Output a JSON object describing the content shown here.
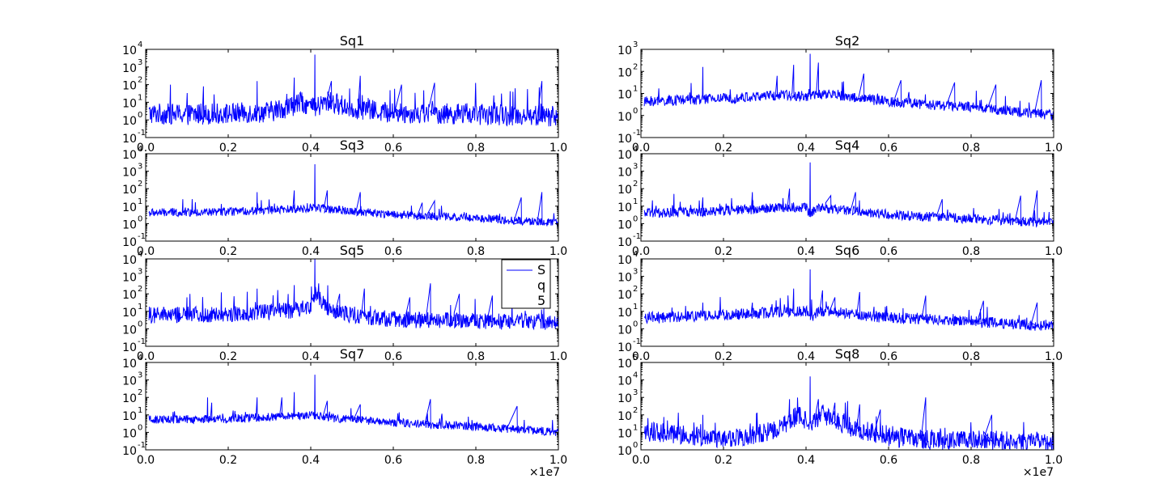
{
  "figure": {
    "background": "#ffffff",
    "line_color": "#0000ff",
    "x_offset_label": "×1e7"
  },
  "chart_data": [
    {
      "type": "line",
      "title": "Sq1",
      "xlabel": "",
      "ylabel": "",
      "xlim": [
        0.0,
        1.0
      ],
      "ylim_log10": [
        -1,
        4
      ],
      "yscale": "log",
      "grid": false,
      "x_ticks": [
        "0.0",
        "0.2",
        "0.4",
        "0.6",
        "0.8",
        "1.0"
      ],
      "y_ticks": [
        {
          "base": "10",
          "exp": "-1"
        },
        {
          "base": "10",
          "exp": "0"
        },
        {
          "base": "10",
          "exp": "1"
        },
        {
          "base": "10",
          "exp": "2"
        },
        {
          "base": "10",
          "exp": "3"
        },
        {
          "base": "10",
          "exp": "4"
        }
      ],
      "series": [
        {
          "x": [
            0.01,
            0.1,
            0.2,
            0.3,
            0.35,
            0.38,
            0.41,
            0.44,
            0.5,
            0.6,
            0.7,
            0.8,
            0.9,
            1.0
          ],
          "baseline_log10": [
            0.3,
            0.25,
            0.3,
            0.4,
            0.7,
            0.95,
            0.55,
            1.0,
            0.6,
            0.35,
            0.3,
            0.25,
            0.2,
            0.15
          ],
          "noise_log10": 0.75,
          "peaks": [
            [
              0.41,
              3.7
            ],
            [
              0.36,
              2.4
            ],
            [
              0.27,
              2.2
            ],
            [
              0.52,
              2.5
            ],
            [
              0.06,
              2.0
            ],
            [
              0.7,
              2.1
            ],
            [
              0.96,
              2.2
            ],
            [
              0.45,
              2.2
            ],
            [
              0.62,
              2.0
            ],
            [
              0.14,
              1.9
            ]
          ]
        }
      ]
    },
    {
      "type": "line",
      "title": "Sq2",
      "xlabel": "",
      "ylabel": "",
      "xlim": [
        0.0,
        1.0
      ],
      "ylim_log10": [
        -1,
        3
      ],
      "yscale": "log",
      "grid": false,
      "x_ticks": [
        "0.0",
        "0.2",
        "0.4",
        "0.6",
        "0.8",
        "1.0"
      ],
      "y_ticks": [
        {
          "base": "10",
          "exp": "-1"
        },
        {
          "base": "10",
          "exp": "0"
        },
        {
          "base": "10",
          "exp": "1"
        },
        {
          "base": "10",
          "exp": "2"
        },
        {
          "base": "10",
          "exp": "3"
        }
      ],
      "series": [
        {
          "x": [
            0.01,
            0.2,
            0.35,
            0.41,
            0.45,
            0.6,
            0.8,
            1.0
          ],
          "baseline_log10": [
            0.6,
            0.75,
            0.9,
            0.85,
            0.95,
            0.6,
            0.35,
            0.0
          ],
          "noise_log10": 0.3,
          "peaks": [
            [
              0.41,
              2.8
            ],
            [
              0.15,
              2.2
            ],
            [
              0.43,
              2.4
            ],
            [
              0.37,
              2.3
            ],
            [
              0.33,
              1.8
            ],
            [
              0.54,
              1.9
            ],
            [
              0.63,
              1.6
            ],
            [
              0.97,
              1.6
            ],
            [
              0.76,
              1.5
            ],
            [
              0.86,
              1.4
            ]
          ]
        }
      ]
    },
    {
      "type": "line",
      "title": "Sq3",
      "xlabel": "",
      "ylabel": "",
      "xlim": [
        0.0,
        1.0
      ],
      "ylim_log10": [
        -1,
        4
      ],
      "yscale": "log",
      "grid": false,
      "x_ticks": [
        "0.0",
        "0.2",
        "0.4",
        "0.6",
        "0.8",
        "1.0"
      ],
      "y_ticks": [
        {
          "base": "10",
          "exp": "-1"
        },
        {
          "base": "10",
          "exp": "0"
        },
        {
          "base": "10",
          "exp": "1"
        },
        {
          "base": "10",
          "exp": "2"
        },
        {
          "base": "10",
          "exp": "3"
        },
        {
          "base": "10",
          "exp": "4"
        }
      ],
      "series": [
        {
          "x": [
            0.01,
            0.2,
            0.35,
            0.41,
            0.45,
            0.6,
            0.8,
            1.0
          ],
          "baseline_log10": [
            0.6,
            0.65,
            0.8,
            0.9,
            0.8,
            0.5,
            0.3,
            0.0
          ],
          "noise_log10": 0.3,
          "peaks": [
            [
              0.41,
              3.4
            ],
            [
              0.27,
              1.8
            ],
            [
              0.36,
              1.9
            ],
            [
              0.44,
              1.9
            ],
            [
              0.52,
              1.8
            ],
            [
              0.96,
              1.8
            ],
            [
              0.09,
              1.4
            ],
            [
              0.67,
              1.2
            ],
            [
              0.7,
              1.3
            ],
            [
              0.91,
              1.5
            ]
          ]
        }
      ]
    },
    {
      "type": "line",
      "title": "Sq4",
      "xlabel": "",
      "ylabel": "",
      "xlim": [
        0.0,
        1.0
      ],
      "ylim_log10": [
        -1,
        4
      ],
      "yscale": "log",
      "grid": false,
      "x_ticks": [
        "0.0",
        "0.2",
        "0.4",
        "0.6",
        "0.8",
        "1.0"
      ],
      "y_ticks": [
        {
          "base": "10",
          "exp": "-1"
        },
        {
          "base": "10",
          "exp": "0"
        },
        {
          "base": "10",
          "exp": "1"
        },
        {
          "base": "10",
          "exp": "2"
        },
        {
          "base": "10",
          "exp": "3"
        },
        {
          "base": "10",
          "exp": "4"
        }
      ],
      "series": [
        {
          "x": [
            0.01,
            0.2,
            0.35,
            0.4,
            0.41,
            0.43,
            0.6,
            0.8,
            1.0
          ],
          "baseline_log10": [
            0.55,
            0.7,
            0.9,
            0.9,
            0.55,
            0.9,
            0.5,
            0.25,
            0.0
          ],
          "noise_log10": 0.35,
          "peaks": [
            [
              0.41,
              3.5
            ],
            [
              0.08,
              1.7
            ],
            [
              0.27,
              1.8
            ],
            [
              0.36,
              2.0
            ],
            [
              0.52,
              1.8
            ],
            [
              0.96,
              1.9
            ],
            [
              0.92,
              1.6
            ],
            [
              0.73,
              1.4
            ],
            [
              0.15,
              1.5
            ],
            [
              0.46,
              1.6
            ]
          ]
        }
      ]
    },
    {
      "type": "line",
      "title": "Sq5",
      "xlabel": "",
      "ylabel": "",
      "xlim": [
        0.0,
        1.0
      ],
      "ylim_log10": [
        -1,
        4
      ],
      "yscale": "log",
      "grid": false,
      "x_ticks": [
        "0.0",
        "0.2",
        "0.4",
        "0.6",
        "0.8",
        "1.0"
      ],
      "y_ticks": [
        {
          "base": "10",
          "exp": "-1"
        },
        {
          "base": "10",
          "exp": "0"
        },
        {
          "base": "10",
          "exp": "1"
        },
        {
          "base": "10",
          "exp": "2"
        },
        {
          "base": "10",
          "exp": "3"
        },
        {
          "base": "10",
          "exp": "4"
        }
      ],
      "legend": {
        "placement": "top-right",
        "entries": [
          "S",
          "q",
          "5"
        ]
      },
      "series": [
        {
          "x": [
            0.01,
            0.2,
            0.35,
            0.4,
            0.41,
            0.45,
            0.6,
            0.8,
            1.0
          ],
          "baseline_log10": [
            0.7,
            0.8,
            1.0,
            1.3,
            1.9,
            0.9,
            0.5,
            0.4,
            0.35
          ],
          "noise_log10": 0.6,
          "peaks": [
            [
              0.41,
              4.0
            ],
            [
              0.36,
              2.5
            ],
            [
              0.27,
              2.3
            ],
            [
              0.53,
              2.3
            ],
            [
              0.69,
              2.6
            ],
            [
              0.76,
              2.0
            ],
            [
              0.84,
              1.9
            ],
            [
              0.64,
              1.8
            ],
            [
              0.1,
              1.8
            ],
            [
              0.47,
              2.0
            ]
          ]
        }
      ]
    },
    {
      "type": "line",
      "title": "Sq6",
      "xlabel": "",
      "ylabel": "",
      "xlim": [
        0.0,
        1.0
      ],
      "ylim_log10": [
        -1,
        4
      ],
      "yscale": "log",
      "grid": false,
      "x_ticks": [
        "0.0",
        "0.2",
        "0.4",
        "0.6",
        "0.8",
        "1.0"
      ],
      "y_ticks": [
        {
          "base": "10",
          "exp": "-1"
        },
        {
          "base": "10",
          "exp": "0"
        },
        {
          "base": "10",
          "exp": "1"
        },
        {
          "base": "10",
          "exp": "2"
        },
        {
          "base": "10",
          "exp": "3"
        },
        {
          "base": "10",
          "exp": "4"
        }
      ],
      "series": [
        {
          "x": [
            0.01,
            0.2,
            0.35,
            0.4,
            0.41,
            0.43,
            0.6,
            0.8,
            1.0
          ],
          "baseline_log10": [
            0.6,
            0.75,
            0.95,
            1.0,
            0.6,
            1.0,
            0.6,
            0.4,
            0.1
          ],
          "noise_log10": 0.4,
          "peaks": [
            [
              0.41,
              3.4
            ],
            [
              0.37,
              2.3
            ],
            [
              0.44,
              2.2
            ],
            [
              0.53,
              2.1
            ],
            [
              0.69,
              1.9
            ],
            [
              0.15,
              1.5
            ],
            [
              0.27,
              1.5
            ],
            [
              0.83,
              1.6
            ],
            [
              0.96,
              1.5
            ],
            [
              0.47,
              1.8
            ]
          ]
        }
      ]
    },
    {
      "type": "line",
      "title": "Sq7",
      "xlabel": "",
      "ylabel": "",
      "xlim": [
        0.0,
        1.0
      ],
      "ylim_log10": [
        -1,
        4
      ],
      "yscale": "log",
      "grid": false,
      "x_ticks": [
        "0.0",
        "0.2",
        "0.4",
        "0.6",
        "0.8",
        "1.0"
      ],
      "y_ticks": [
        {
          "base": "10",
          "exp": "-1"
        },
        {
          "base": "10",
          "exp": "0"
        },
        {
          "base": "10",
          "exp": "1"
        },
        {
          "base": "10",
          "exp": "2"
        },
        {
          "base": "10",
          "exp": "3"
        },
        {
          "base": "10",
          "exp": "4"
        }
      ],
      "series": [
        {
          "x": [
            0.01,
            0.2,
            0.35,
            0.41,
            0.45,
            0.6,
            0.8,
            1.0
          ],
          "baseline_log10": [
            0.7,
            0.75,
            0.9,
            0.95,
            0.8,
            0.55,
            0.3,
            0.0
          ],
          "noise_log10": 0.3,
          "peaks": [
            [
              0.41,
              3.3
            ],
            [
              0.36,
              2.3
            ],
            [
              0.15,
              2.0
            ],
            [
              0.27,
              2.0
            ],
            [
              0.33,
              2.0
            ],
            [
              0.44,
              1.8
            ],
            [
              0.69,
              1.9
            ],
            [
              0.16,
              1.7
            ],
            [
              0.52,
              1.6
            ],
            [
              0.9,
              1.5
            ]
          ]
        }
      ]
    },
    {
      "type": "line",
      "title": "Sq8",
      "xlabel": "",
      "ylabel": "",
      "xlim": [
        0.0,
        1.0
      ],
      "ylim_log10": [
        0,
        5
      ],
      "yscale": "log",
      "grid": false,
      "x_ticks": [
        "0.0",
        "0.2",
        "0.4",
        "0.6",
        "0.8",
        "1.0"
      ],
      "y_ticks": [
        {
          "base": "10",
          "exp": "0"
        },
        {
          "base": "10",
          "exp": "1"
        },
        {
          "base": "10",
          "exp": "2"
        },
        {
          "base": "10",
          "exp": "3"
        },
        {
          "base": "10",
          "exp": "4"
        },
        {
          "base": "10",
          "exp": "5"
        }
      ],
      "series": [
        {
          "x": [
            0.01,
            0.1,
            0.2,
            0.3,
            0.35,
            0.38,
            0.41,
            0.44,
            0.5,
            0.6,
            0.7,
            0.8,
            0.9,
            1.0
          ],
          "baseline_log10": [
            1.0,
            0.8,
            0.6,
            0.9,
            1.4,
            1.9,
            1.5,
            2.0,
            1.3,
            0.7,
            0.5,
            0.5,
            0.45,
            0.4
          ],
          "noise_log10": 0.7,
          "peaks": [
            [
              0.41,
              4.2
            ],
            [
              0.36,
              2.9
            ],
            [
              0.43,
              2.9
            ],
            [
              0.47,
              2.7
            ],
            [
              0.53,
              2.6
            ],
            [
              0.69,
              3.0
            ],
            [
              0.28,
              2.1
            ],
            [
              0.15,
              2.0
            ],
            [
              0.58,
              2.3
            ],
            [
              0.85,
              2.0
            ]
          ]
        }
      ]
    }
  ]
}
